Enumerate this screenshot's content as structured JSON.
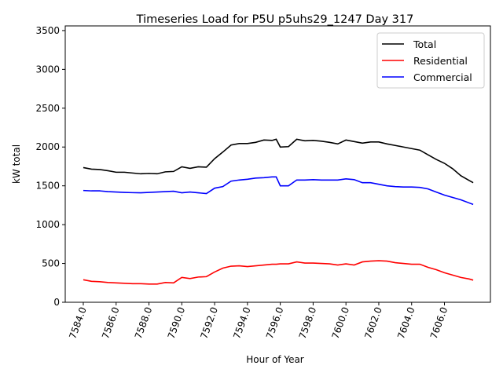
{
  "chart_data": {
    "type": "line",
    "title": "Timeseries Load for P5U p5uhs29_1247  Day 317",
    "xlabel": "Hour of Year",
    "ylabel": "kW total",
    "xlim": [
      7582.9,
      7608.8
    ],
    "ylim": [
      0,
      3560
    ],
    "xticks": [
      7584,
      7586,
      7588,
      7590,
      7592,
      7594,
      7596,
      7598,
      7600,
      7602,
      7604,
      7606
    ],
    "xtick_labels": [
      "7584.0",
      "7586.0",
      "7588.0",
      "7590.0",
      "7592.0",
      "7594.0",
      "7596.0",
      "7598.0",
      "7600.0",
      "7602.0",
      "7604.0",
      "7606.0"
    ],
    "yticks": [
      0,
      500,
      1000,
      1500,
      2000,
      2500,
      3000,
      3500
    ],
    "ytick_labels": [
      "0",
      "500",
      "1000",
      "1500",
      "2000",
      "2500",
      "3000",
      "3500"
    ],
    "legend_position": "top-right",
    "x": [
      7584,
      7584.5,
      7585,
      7585.5,
      7586,
      7586.5,
      7587,
      7587.5,
      7588,
      7588.5,
      7589,
      7589.5,
      7590,
      7590.5,
      7591,
      7591.5,
      7592,
      7592.5,
      7593,
      7593.5,
      7594,
      7594.5,
      7595,
      7595.5,
      7595.75,
      7596,
      7596.5,
      7597,
      7597.5,
      7598,
      7598.5,
      7599,
      7599.5,
      7600,
      7600.5,
      7601,
      7601.5,
      7602,
      7602.5,
      7603,
      7603.5,
      7604,
      7604.5,
      7605,
      7605.5,
      7606,
      7606.5,
      7607,
      7607.5,
      7607.75
    ],
    "series": [
      {
        "name": "Total",
        "color": "#000000",
        "values": [
          1735,
          1715,
          1710,
          1695,
          1675,
          1675,
          1665,
          1655,
          1660,
          1655,
          1680,
          1685,
          1745,
          1725,
          1745,
          1740,
          1850,
          1935,
          2025,
          2045,
          2045,
          2060,
          2090,
          2085,
          2100,
          2000,
          2005,
          2100,
          2080,
          2085,
          2075,
          2060,
          2040,
          2090,
          2070,
          2050,
          2065,
          2065,
          2040,
          2020,
          2000,
          1980,
          1960,
          1900,
          1840,
          1790,
          1720,
          1630,
          1570,
          1540
        ]
      },
      {
        "name": "Residential",
        "color": "#ff0000",
        "values": [
          290,
          270,
          265,
          255,
          250,
          245,
          240,
          240,
          235,
          235,
          255,
          250,
          320,
          305,
          325,
          330,
          390,
          440,
          465,
          470,
          460,
          470,
          480,
          490,
          490,
          495,
          495,
          520,
          505,
          505,
          500,
          495,
          480,
          495,
          480,
          520,
          530,
          535,
          530,
          510,
          500,
          490,
          490,
          450,
          420,
          380,
          350,
          320,
          300,
          285
        ]
      },
      {
        "name": "Commercial",
        "color": "#0000ff",
        "values": [
          1440,
          1435,
          1435,
          1425,
          1420,
          1415,
          1412,
          1410,
          1415,
          1420,
          1425,
          1430,
          1410,
          1420,
          1410,
          1400,
          1470,
          1490,
          1560,
          1575,
          1585,
          1600,
          1605,
          1615,
          1615,
          1500,
          1500,
          1575,
          1575,
          1580,
          1575,
          1575,
          1575,
          1590,
          1580,
          1540,
          1540,
          1520,
          1500,
          1490,
          1485,
          1485,
          1480,
          1460,
          1420,
          1380,
          1350,
          1320,
          1280,
          1260
        ]
      }
    ]
  }
}
